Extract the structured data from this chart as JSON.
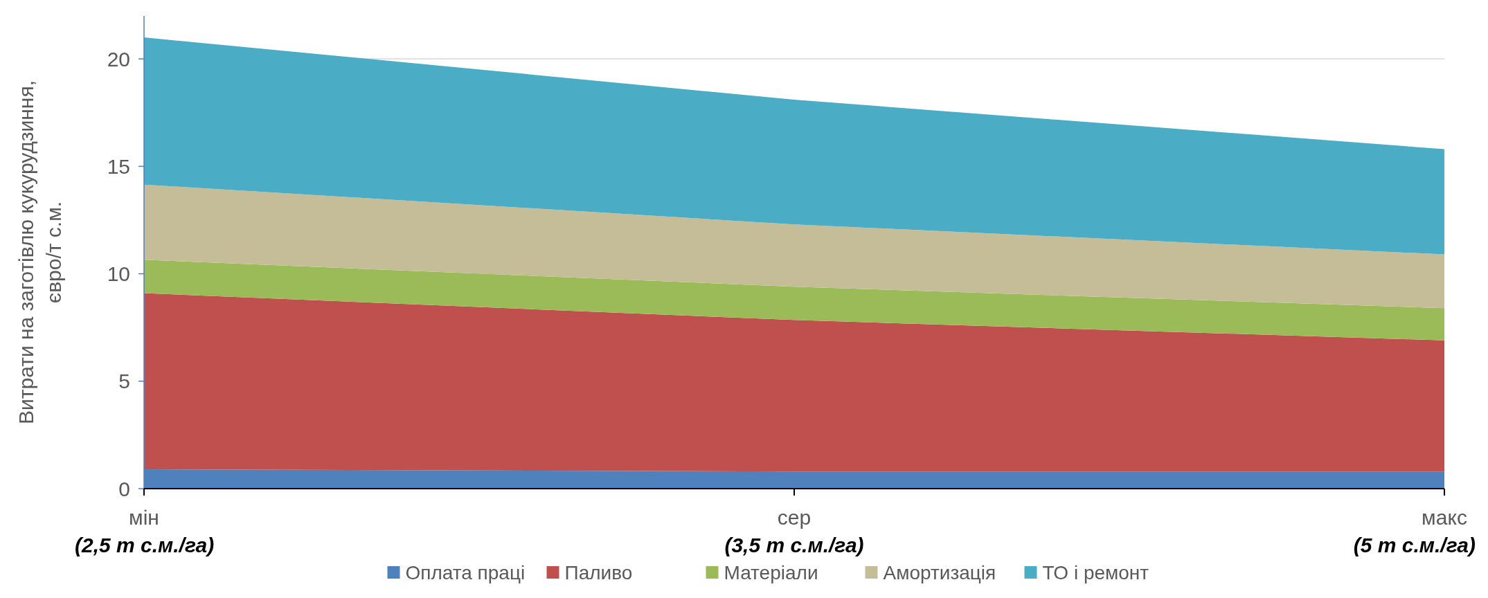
{
  "chart_data": {
    "type": "area",
    "stacked": true,
    "ylabel": "Витрати на заготівлю кукурудзиння,\nєвро/т с.м.",
    "categories": [
      "мін\n(2,5 т с.м./га)",
      "сер\n(3,5 т с.м./га)",
      "макс\n(5 т с.м./га)"
    ],
    "series": [
      {
        "name": "Оплата праці",
        "color": "#4f81bd",
        "values": [
          0.9,
          0.8,
          0.8
        ]
      },
      {
        "name": "Паливо",
        "color": "#c0504d",
        "values": [
          8.2,
          7.05,
          6.1
        ]
      },
      {
        "name": "Матеріали",
        "color": "#9bbb59",
        "values": [
          1.55,
          1.55,
          1.5
        ]
      },
      {
        "name": "Амортизація",
        "color": "#c4bd97",
        "values": [
          3.5,
          2.9,
          2.5
        ]
      },
      {
        "name": "ТО і ремонт",
        "color": "#4bacc6",
        "values": [
          6.85,
          5.8,
          4.9
        ]
      }
    ],
    "ylim": [
      0,
      22
    ],
    "yticks": [
      0,
      5,
      10,
      15,
      20
    ],
    "grid": "y",
    "legend": "bottom"
  }
}
